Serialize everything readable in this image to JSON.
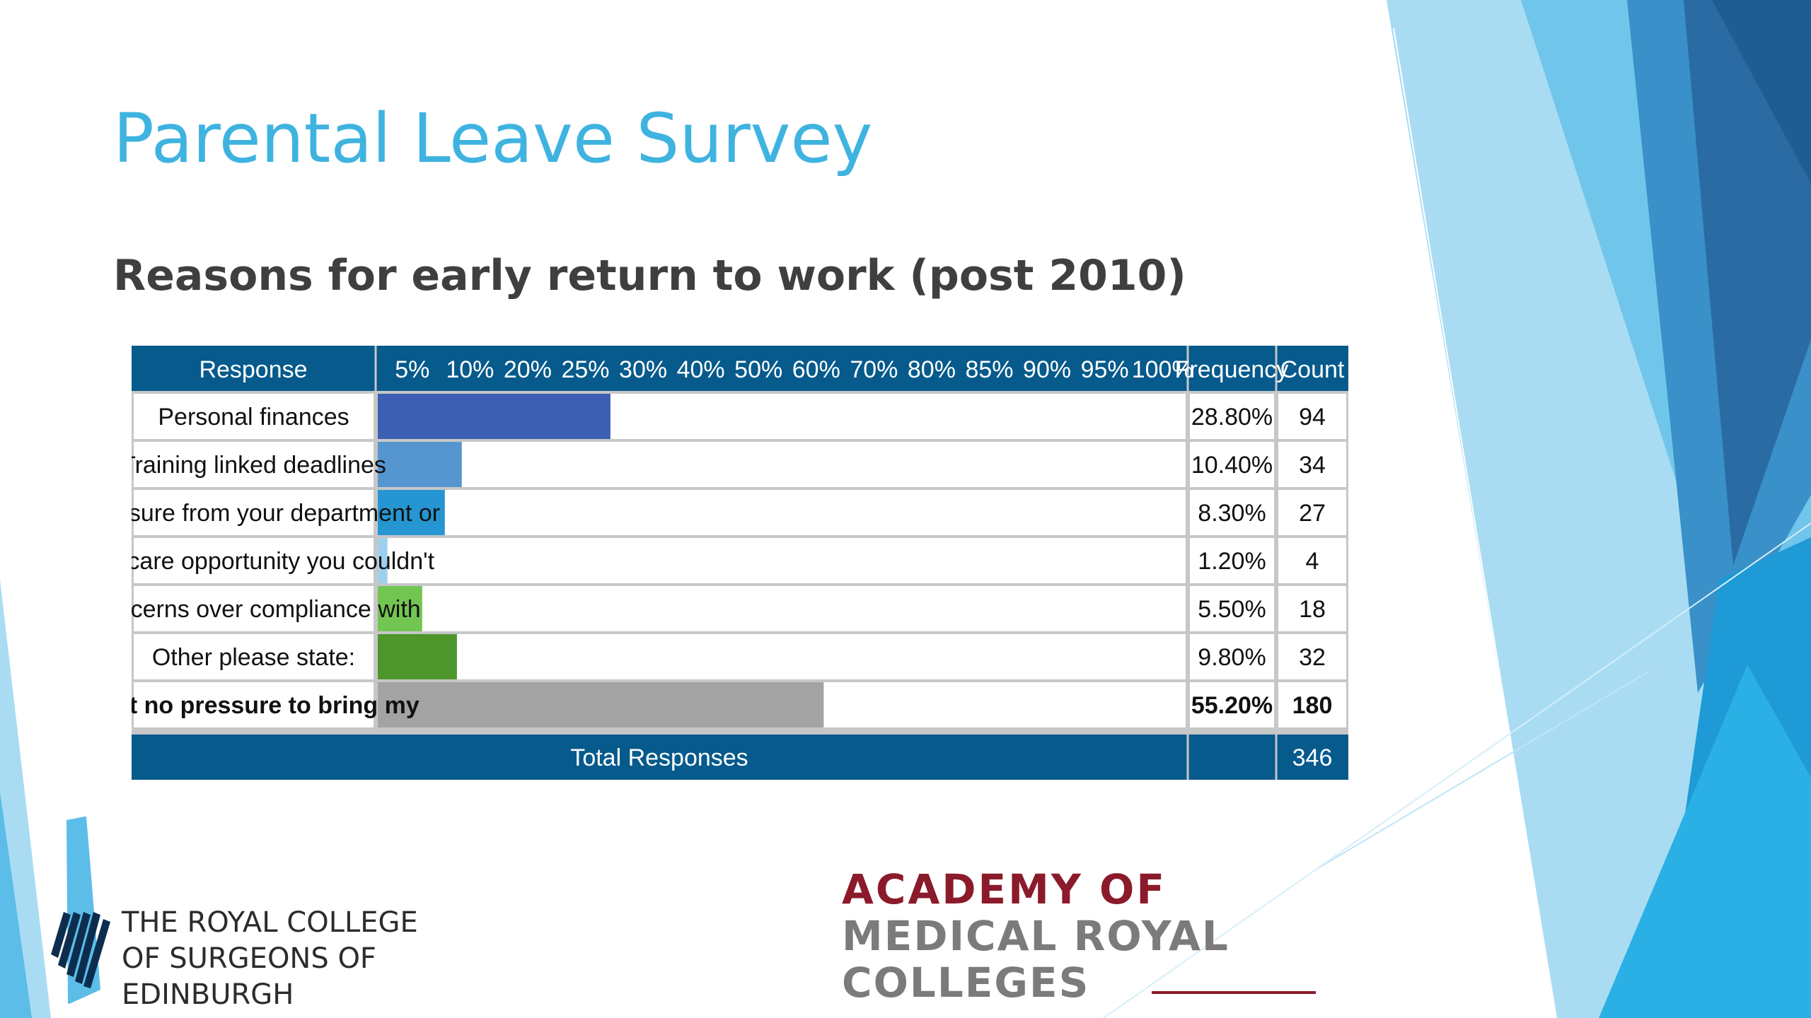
{
  "slide": {
    "title": "Parental Leave Survey",
    "subtitle": "Reasons for early return to work (post 2010)"
  },
  "table": {
    "headers": {
      "response": "Response",
      "frequency": "Frequency",
      "count": "Count",
      "scale": [
        "5%",
        "10%",
        "20%",
        "25%",
        "30%",
        "40%",
        "50%",
        "60%",
        "70%",
        "80%",
        "85%",
        "90%",
        "95%",
        "100%"
      ]
    },
    "footer": {
      "label": "Total Responses",
      "total": "346"
    }
  },
  "chart_data": {
    "type": "bar",
    "title": "",
    "categories": [
      "Personal finances",
      "Training linked deadlines",
      "Presssure from your department or",
      "Childcare opportunity you couldn't",
      "Concerns over compliance with",
      "Other please state:",
      "I felt no pressure to bring my"
    ],
    "values": [
      28.8,
      10.4,
      8.3,
      1.2,
      5.5,
      9.8,
      55.2
    ],
    "frequency_labels": [
      "28.80%",
      "10.40%",
      "8.30%",
      "1.20%",
      "5.50%",
      "9.80%",
      "55.20%"
    ],
    "counts": [
      94,
      34,
      27,
      4,
      18,
      32,
      180
    ],
    "bar_colors": [
      "#3c5fb3",
      "#5596d1",
      "#2696d3",
      "#9ed0ee",
      "#73c552",
      "#4d962c",
      "#a3a3a3"
    ],
    "bold_rows": [
      6
    ],
    "xlabel": "",
    "ylabel": "",
    "header_color": "#065a8c"
  },
  "logos": {
    "rcs": {
      "lines": [
        "THE ROYAL COLLEGE",
        "OF SURGEONS OF",
        "EDINBURGH"
      ]
    },
    "amrc": {
      "lines": [
        "ACADEMY OF",
        "MEDICAL ROYAL",
        "COLLEGES"
      ],
      "colors": {
        "first": "#8b1a2b",
        "rest": "#7b7b7b"
      }
    }
  },
  "colors": {
    "title": "#3fb3e0",
    "subtitle": "#3f3f3f",
    "deco_light": "#a9dcf3",
    "deco_mid": "#3fb3e0",
    "deco_dark": "#2a6ba3"
  }
}
